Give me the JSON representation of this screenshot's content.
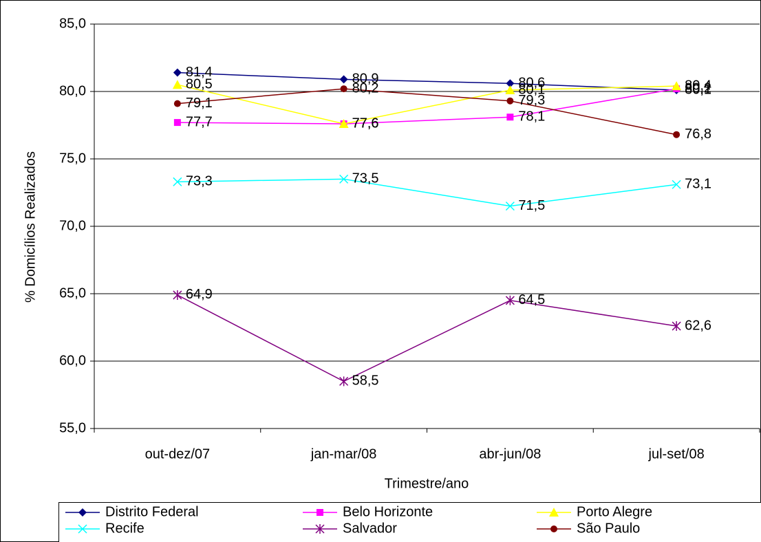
{
  "chart_data": {
    "type": "line",
    "y_label": "% Domicílios Realizados",
    "x_label": "Trimestre/ano",
    "categories": [
      "out-dez/07",
      "jan-mar/08",
      "abr-jun/08",
      "jul-set/08"
    ],
    "ylim": [
      55,
      85
    ],
    "yticks": [
      {
        "value": 55,
        "label": "55,0"
      },
      {
        "value": 60,
        "label": "60,0"
      },
      {
        "value": 65,
        "label": "65,0"
      },
      {
        "value": 70,
        "label": "70,0"
      },
      {
        "value": 75,
        "label": "75,0"
      },
      {
        "value": 80,
        "label": "80,0"
      },
      {
        "value": 85,
        "label": "85,0"
      }
    ],
    "grid": true,
    "legend": "bottom",
    "series": [
      {
        "name": "Distrito Federal",
        "color": "#000080",
        "marker": "diamond",
        "values": [
          81.4,
          80.9,
          80.6,
          80.1
        ],
        "value_labels": [
          "81,4",
          "80,9",
          "80,6",
          "80,1"
        ]
      },
      {
        "name": "Belo Horizonte",
        "color": "#ff00ff",
        "marker": "square",
        "values": [
          77.7,
          77.6,
          78.1,
          80.2
        ],
        "value_labels": [
          "77,7",
          "77,6",
          "78,1",
          "80,2"
        ]
      },
      {
        "name": "Porto Alegre",
        "color": "#ffff00",
        "marker": "triangle",
        "values": [
          80.5,
          77.6,
          80.1,
          80.4
        ],
        "value_labels": [
          "80,5",
          "77,6",
          "80,1",
          "80,4"
        ]
      },
      {
        "name": "Recife",
        "color": "#00ffff",
        "marker": "x",
        "values": [
          73.3,
          73.5,
          71.5,
          73.1
        ],
        "value_labels": [
          "73,3",
          "73,5",
          "71,5",
          "73,1"
        ]
      },
      {
        "name": "Salvador",
        "color": "#800080",
        "marker": "star",
        "values": [
          64.9,
          58.5,
          64.5,
          62.6
        ],
        "value_labels": [
          "64,9",
          "58,5",
          "64,5",
          "62,6"
        ]
      },
      {
        "name": "São Paulo",
        "color": "#800000",
        "marker": "circle",
        "values": [
          79.1,
          80.2,
          79.3,
          76.8
        ],
        "value_labels": [
          "79,1",
          "80,2",
          "79,3",
          "76,8"
        ]
      }
    ]
  }
}
